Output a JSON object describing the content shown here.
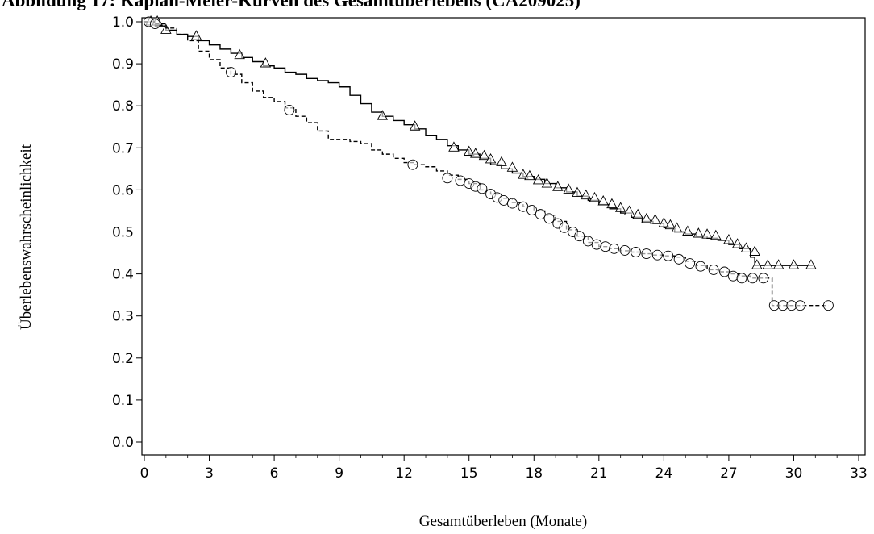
{
  "chart_data": {
    "type": "line",
    "title": "Abbildung 17: Kaplan-Meier-Kurven des Gesamtüberlebens (CA209025)",
    "xlabel": "Gesamtüberleben (Monate)",
    "ylabel": "Überlebenswahrscheinlichkeit",
    "xlim": [
      0,
      33
    ],
    "ylim": [
      0,
      1
    ],
    "xticks": [
      "0",
      "3",
      "6",
      "9",
      "12",
      "15",
      "18",
      "21",
      "24",
      "27",
      "30",
      "33"
    ],
    "yticks": [
      "0.0",
      "0.1",
      "0.2",
      "0.3",
      "0.4",
      "0.5",
      "0.6",
      "0.7",
      "0.8",
      "0.9",
      "1.0"
    ],
    "grid": false,
    "legend": "none",
    "series": [
      {
        "style": "solid",
        "marker": "triangle",
        "color": "#000000",
        "x": [
          0,
          0.5,
          1.0,
          1.5,
          2.0,
          2.5,
          3.0,
          3.5,
          4.0,
          4.5,
          5.0,
          5.5,
          6.0,
          6.5,
          7.0,
          7.5,
          8.0,
          8.5,
          9.0,
          9.5,
          10.0,
          10.5,
          11.0,
          11.5,
          12.0,
          12.5,
          13.0,
          13.5,
          14.0,
          14.5,
          15.0,
          15.5,
          16.0,
          16.5,
          17.0,
          17.5,
          18.0,
          18.5,
          19.0,
          19.5,
          20.0,
          20.5,
          21.0,
          21.5,
          22.0,
          22.5,
          23.0,
          23.5,
          24.0,
          24.5,
          25.0,
          25.5,
          26.0,
          26.5,
          27.0,
          27.5,
          28.0,
          28.2,
          29.0,
          30.0,
          30.9
        ],
        "y": [
          1.0,
          0.99,
          0.98,
          0.97,
          0.965,
          0.955,
          0.945,
          0.935,
          0.925,
          0.915,
          0.905,
          0.895,
          0.89,
          0.88,
          0.875,
          0.865,
          0.86,
          0.855,
          0.845,
          0.825,
          0.805,
          0.785,
          0.775,
          0.765,
          0.755,
          0.745,
          0.73,
          0.72,
          0.705,
          0.695,
          0.685,
          0.675,
          0.66,
          0.65,
          0.64,
          0.632,
          0.625,
          0.615,
          0.605,
          0.595,
          0.585,
          0.575,
          0.565,
          0.555,
          0.545,
          0.535,
          0.525,
          0.52,
          0.51,
          0.5,
          0.495,
          0.49,
          0.485,
          0.48,
          0.47,
          0.46,
          0.44,
          0.42,
          0.42,
          0.42,
          0.42
        ],
        "censored": [
          [
            0.3,
            1.0
          ],
          [
            0.6,
            1.0
          ],
          [
            1.0,
            0.98
          ],
          [
            2.4,
            0.965
          ],
          [
            4.4,
            0.92
          ],
          [
            5.6,
            0.9
          ],
          [
            11.0,
            0.775
          ],
          [
            12.5,
            0.75
          ],
          [
            14.3,
            0.7
          ],
          [
            15.0,
            0.69
          ],
          [
            15.3,
            0.685
          ],
          [
            15.7,
            0.68
          ],
          [
            16.0,
            0.672
          ],
          [
            16.5,
            0.665
          ],
          [
            17.0,
            0.652
          ],
          [
            17.5,
            0.635
          ],
          [
            17.8,
            0.632
          ],
          [
            18.2,
            0.622
          ],
          [
            18.6,
            0.614
          ],
          [
            19.1,
            0.606
          ],
          [
            19.6,
            0.6
          ],
          [
            20.0,
            0.592
          ],
          [
            20.4,
            0.586
          ],
          [
            20.8,
            0.58
          ],
          [
            21.2,
            0.572
          ],
          [
            21.6,
            0.565
          ],
          [
            22.0,
            0.556
          ],
          [
            22.4,
            0.548
          ],
          [
            22.8,
            0.54
          ],
          [
            23.2,
            0.53
          ],
          [
            23.6,
            0.528
          ],
          [
            24.0,
            0.52
          ],
          [
            24.3,
            0.515
          ],
          [
            24.6,
            0.508
          ],
          [
            25.1,
            0.5
          ],
          [
            25.6,
            0.495
          ],
          [
            26.0,
            0.493
          ],
          [
            26.4,
            0.49
          ],
          [
            27.0,
            0.48
          ],
          [
            27.4,
            0.47
          ],
          [
            27.8,
            0.46
          ],
          [
            28.2,
            0.452
          ],
          [
            28.3,
            0.42
          ],
          [
            28.8,
            0.42
          ],
          [
            29.3,
            0.42
          ],
          [
            30.0,
            0.42
          ],
          [
            30.8,
            0.42
          ]
        ]
      },
      {
        "style": "dashed",
        "marker": "circle",
        "color": "#000000",
        "x": [
          0,
          0.5,
          1.0,
          1.5,
          2.0,
          2.5,
          3.0,
          3.5,
          4.0,
          4.5,
          5.0,
          5.5,
          6.0,
          6.5,
          7.0,
          7.5,
          8.0,
          8.5,
          9.0,
          9.5,
          10.0,
          10.5,
          11.0,
          11.5,
          12.0,
          12.5,
          13.0,
          13.5,
          14.0,
          14.5,
          15.0,
          15.5,
          16.0,
          16.5,
          17.0,
          17.5,
          18.0,
          18.5,
          19.0,
          19.5,
          20.0,
          20.5,
          21.0,
          21.5,
          22.0,
          22.5,
          23.0,
          23.5,
          24.0,
          24.5,
          25.0,
          25.5,
          26.0,
          26.5,
          27.0,
          27.5,
          28.0,
          28.5,
          28.9,
          29.0,
          30.0,
          31.6
        ],
        "y": [
          1.0,
          0.995,
          0.985,
          0.97,
          0.955,
          0.93,
          0.91,
          0.89,
          0.875,
          0.855,
          0.835,
          0.82,
          0.81,
          0.795,
          0.775,
          0.76,
          0.74,
          0.72,
          0.72,
          0.715,
          0.71,
          0.695,
          0.685,
          0.675,
          0.665,
          0.66,
          0.655,
          0.645,
          0.635,
          0.625,
          0.615,
          0.6,
          0.59,
          0.58,
          0.57,
          0.56,
          0.55,
          0.54,
          0.525,
          0.505,
          0.49,
          0.475,
          0.465,
          0.46,
          0.455,
          0.452,
          0.448,
          0.445,
          0.443,
          0.44,
          0.43,
          0.42,
          0.41,
          0.405,
          0.4,
          0.395,
          0.39,
          0.39,
          0.39,
          0.325,
          0.325,
          0.325
        ],
        "censored": [
          [
            0.2,
            1.0
          ],
          [
            0.5,
            0.995
          ],
          [
            4.0,
            0.88
          ],
          [
            6.7,
            0.79
          ],
          [
            12.4,
            0.66
          ],
          [
            14.0,
            0.628
          ],
          [
            14.6,
            0.622
          ],
          [
            15.0,
            0.615
          ],
          [
            15.3,
            0.608
          ],
          [
            15.6,
            0.603
          ],
          [
            16.0,
            0.59
          ],
          [
            16.3,
            0.582
          ],
          [
            16.6,
            0.575
          ],
          [
            17.0,
            0.568
          ],
          [
            17.5,
            0.56
          ],
          [
            17.9,
            0.552
          ],
          [
            18.3,
            0.542
          ],
          [
            18.7,
            0.532
          ],
          [
            19.1,
            0.52
          ],
          [
            19.4,
            0.51
          ],
          [
            19.8,
            0.5
          ],
          [
            20.1,
            0.49
          ],
          [
            20.5,
            0.478
          ],
          [
            20.9,
            0.47
          ],
          [
            21.3,
            0.465
          ],
          [
            21.7,
            0.46
          ],
          [
            22.2,
            0.456
          ],
          [
            22.7,
            0.452
          ],
          [
            23.2,
            0.448
          ],
          [
            23.7,
            0.445
          ],
          [
            24.2,
            0.443
          ],
          [
            24.7,
            0.435
          ],
          [
            25.2,
            0.425
          ],
          [
            25.7,
            0.418
          ],
          [
            26.3,
            0.41
          ],
          [
            26.8,
            0.405
          ],
          [
            27.2,
            0.395
          ],
          [
            27.6,
            0.39
          ],
          [
            28.1,
            0.39
          ],
          [
            28.6,
            0.39
          ],
          [
            29.1,
            0.325
          ],
          [
            29.5,
            0.325
          ],
          [
            29.9,
            0.325
          ],
          [
            30.3,
            0.325
          ],
          [
            31.6,
            0.325
          ]
        ]
      }
    ]
  }
}
